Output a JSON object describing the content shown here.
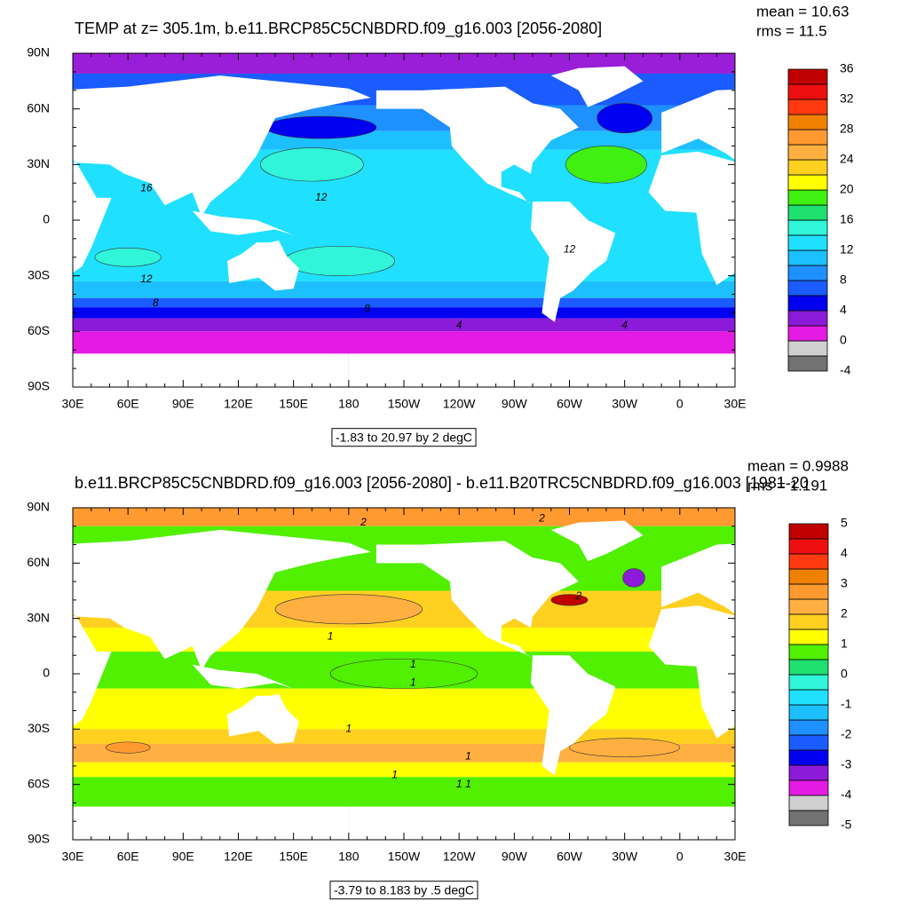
{
  "lon_ticks": [
    "30E",
    "60E",
    "90E",
    "120E",
    "150E",
    "180",
    "150W",
    "120W",
    "90W",
    "60W",
    "30W",
    "0",
    "30E"
  ],
  "lat_ticks": [
    "90N",
    "60N",
    "30N",
    "0",
    "30S",
    "60S",
    "90S"
  ],
  "panels": [
    {
      "title": "TEMP at z= 305.1m, b.e11.BRCP85C5CNBDRD.f09_g16.003 [2056-2080]",
      "mean_label": "mean = 10.63",
      "rms_label": "rms = 11.5",
      "range_label": "-1.83 to 20.97 by 2 degC",
      "contour_labels": [
        "16",
        "12",
        "12",
        "12",
        "8",
        "8",
        "4",
        "4"
      ],
      "colorbar": {
        "levels": [
          -4,
          -2,
          0,
          2,
          4,
          6,
          8,
          10,
          12,
          14,
          16,
          18,
          20,
          22,
          24,
          26,
          28,
          30,
          32,
          34,
          36
        ],
        "colors": [
          "#727272",
          "#cfcfcf",
          "#e31be3",
          "#8c1ad9",
          "#0000f0",
          "#1a5cff",
          "#1e90ff",
          "#1cc0ff",
          "#20e0ff",
          "#30f5d8",
          "#20e070",
          "#40f010",
          "#ffff00",
          "#ffd020",
          "#ffb040",
          "#ff9a30",
          "#f08000",
          "#ff3a10",
          "#ee1010",
          "#c00000"
        ],
        "labels": [
          -4,
          0,
          4,
          8,
          12,
          16,
          20,
          24,
          28,
          32,
          36
        ]
      }
    },
    {
      "title": "b.e11.BRCP85C5CNBDRD.f09_g16.003 [2056-2080] - b.e11.B20TRC5CNBDRD.f09_g16.003 [1981-20",
      "mean_label": "mean = 0.9988",
      "rms_label": "rms = 1.191",
      "range_label": "-3.79 to 8.183 by .5 degC",
      "contour_labels": [
        "2",
        "2",
        "2",
        "1",
        "1",
        "1",
        "1",
        "1",
        "1",
        "1",
        "1"
      ],
      "colorbar": {
        "levels": [
          -5,
          -4.5,
          -4,
          -3.5,
          -3,
          -2.5,
          -2,
          -1.5,
          -1,
          -0.5,
          0,
          0.5,
          1,
          1.5,
          2,
          2.5,
          3,
          3.5,
          4,
          4.5,
          5
        ],
        "colors": [
          "#727272",
          "#cfcfcf",
          "#e31be3",
          "#8c1ad9",
          "#0000f0",
          "#1a5cff",
          "#1e90ff",
          "#1cc0ff",
          "#20e0ff",
          "#30f5d8",
          "#20e070",
          "#50f000",
          "#ffff00",
          "#ffd020",
          "#ffb040",
          "#ff9a30",
          "#f08000",
          "#ff3a10",
          "#ee1010",
          "#c00000"
        ],
        "labels": [
          -5,
          -4,
          -3,
          -2,
          -1,
          0,
          1,
          2,
          3,
          4,
          5
        ]
      }
    }
  ]
}
